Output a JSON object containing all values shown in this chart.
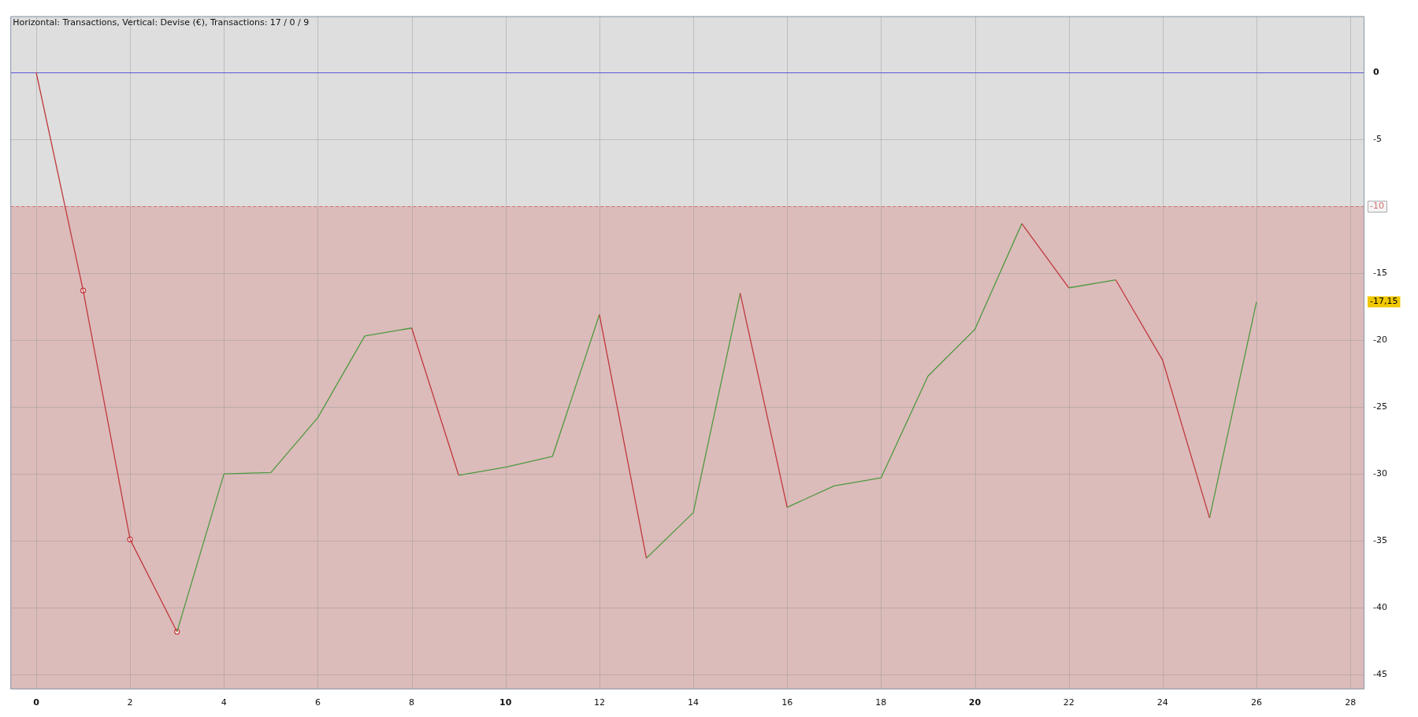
{
  "chart_data": {
    "type": "line",
    "title": "Horizontal: Transactions, Vertical: Devise (€), Transactions: 17 / 0 / 9",
    "series": [
      {
        "color": "#c0393b",
        "x": [
          0,
          1,
          2,
          3,
          3.5,
          8,
          9,
          9.5,
          12,
          13,
          13.5,
          15,
          16,
          16.5,
          21,
          22,
          22.5,
          23,
          24,
          25
        ],
        "values": [
          0,
          -16.3,
          -34.9,
          -41.8,
          null,
          -19.1,
          -30.1,
          null,
          -18.1,
          -36.3,
          null,
          -16.5,
          -32.5,
          null,
          -11.3,
          -16.1,
          null,
          -15.5,
          -21.5,
          -33.3
        ]
      },
      {
        "color": "#4e9a3e",
        "x": [
          3,
          4,
          5,
          6,
          7,
          8,
          8.5,
          9,
          10,
          11,
          12,
          12.5,
          13,
          14,
          15,
          15.5,
          16,
          17,
          18,
          19,
          20,
          21,
          21.5,
          22,
          23,
          23.5,
          25,
          26
        ],
        "values": [
          -41.8,
          -30.0,
          -29.9,
          -25.8,
          -19.7,
          -19.1,
          null,
          -30.1,
          -29.5,
          -28.7,
          -18.1,
          null,
          -36.3,
          -32.9,
          -16.5,
          null,
          -32.5,
          -30.9,
          -30.3,
          -22.7,
          -19.2,
          -11.3,
          null,
          -16.1,
          -15.5,
          null,
          -33.3,
          -17.15
        ]
      },
      {
        "type": "scatter",
        "marker": "circle",
        "color": "#c0393b",
        "x": [
          1,
          2,
          3
        ],
        "values": [
          -16.3,
          -34.9,
          -41.8
        ]
      }
    ],
    "xlim": [
      -0.55,
      28.3
    ],
    "xticks": [
      0,
      2,
      4,
      6,
      8,
      10,
      12,
      14,
      16,
      18,
      20,
      22,
      24,
      26,
      28
    ],
    "ylim": [
      -46.1,
      4.2
    ],
    "yticks": [
      0,
      -5,
      -15,
      -20,
      -25,
      -30,
      -35,
      -40,
      -45
    ],
    "ref_lines": [
      {
        "axis": "y",
        "value": 0,
        "color": "#5a5ad2",
        "line_style": "solid"
      },
      {
        "axis": "y",
        "value": -10,
        "label": "-10",
        "color": "#d07070",
        "line_style": "dashed"
      }
    ],
    "bands": [
      {
        "axis": "y",
        "from": -10,
        "to": -46.1,
        "color": "#dcbbbb"
      }
    ],
    "annotations": [
      "-17,15"
    ],
    "grid": true,
    "legend": false
  }
}
